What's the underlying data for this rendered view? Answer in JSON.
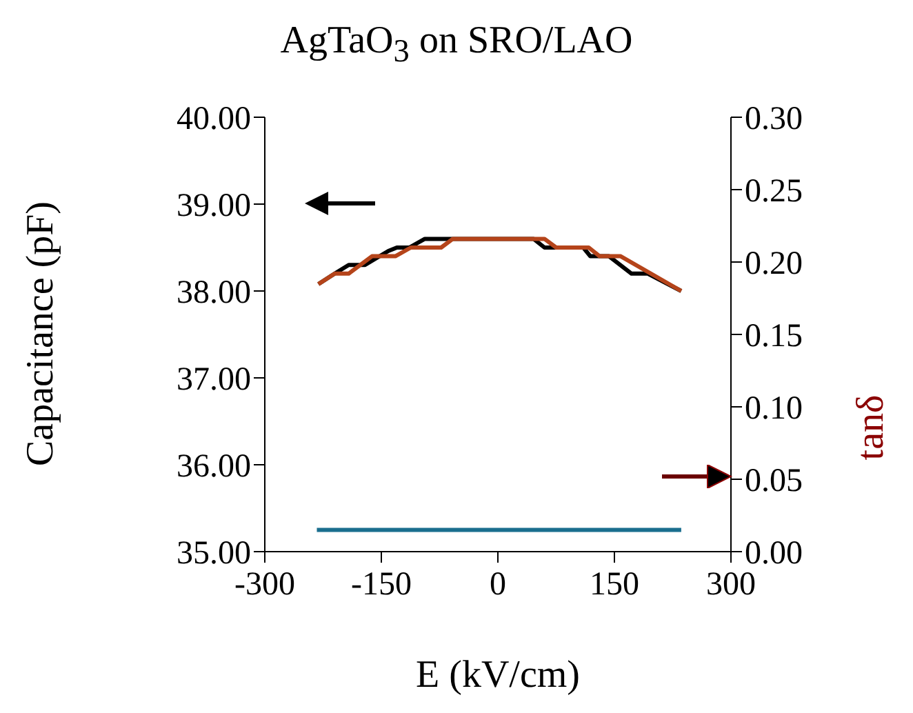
{
  "chart_data": {
    "type": "line",
    "title": "AgTaO$_{3}$ on SRO/LAO",
    "xlabel": "E (kV/cm)",
    "ylabel": "Capacitance (pF)",
    "y2label": "tanδ",
    "xlim": [
      -300,
      300
    ],
    "xticks": [
      -300,
      -150,
      0,
      150,
      300
    ],
    "ylim": [
      35,
      40
    ],
    "yticks": [
      {
        "value": 35,
        "label": "35.00"
      },
      {
        "value": 36,
        "label": "36.00"
      },
      {
        "value": 37,
        "label": "37.00"
      },
      {
        "value": 38,
        "label": "38.00"
      },
      {
        "value": 39,
        "label": "39.00"
      },
      {
        "value": 40,
        "label": "40.00"
      }
    ],
    "y2lim": [
      0,
      0.3
    ],
    "y2ticks": [
      {
        "value": 0,
        "label": "0.00"
      },
      {
        "value": 0.05,
        "label": "0.05"
      },
      {
        "value": 0.1,
        "label": "0.10"
      },
      {
        "value": 0.15,
        "label": "0.15"
      },
      {
        "value": 0.2,
        "label": "0.20"
      },
      {
        "value": 0.25,
        "label": "0.25"
      },
      {
        "value": 0.3,
        "label": "0.30"
      }
    ],
    "marker": "none",
    "line_style": "solid",
    "series": [
      {
        "color": "#000000",
        "x": [
          -231,
          -210,
          -192,
          -171,
          -141,
          -130,
          -114,
          -94,
          46,
          60,
          110,
          119,
          143,
          172,
          193,
          236
        ],
        "values": [
          38.08,
          38.2,
          38.3,
          38.3,
          38.46,
          38.5,
          38.5,
          38.6,
          38.6,
          38.5,
          38.5,
          38.4,
          38.4,
          38.2,
          38.2,
          38.0
        ]
      },
      {
        "color": "#b5441a",
        "x": [
          -231,
          -210,
          -192,
          -162,
          -132,
          -112,
          -73,
          -58,
          60,
          75,
          117,
          131,
          158,
          236
        ],
        "values": [
          38.08,
          38.2,
          38.2,
          38.4,
          38.4,
          38.5,
          38.5,
          38.6,
          38.6,
          38.5,
          38.5,
          38.4,
          38.4,
          38.0
        ]
      },
      {
        "color": "#1a6e8e",
        "axis": "y2",
        "x": [
          -233,
          236
        ],
        "values": [
          0.015,
          0.015
        ]
      }
    ]
  }
}
